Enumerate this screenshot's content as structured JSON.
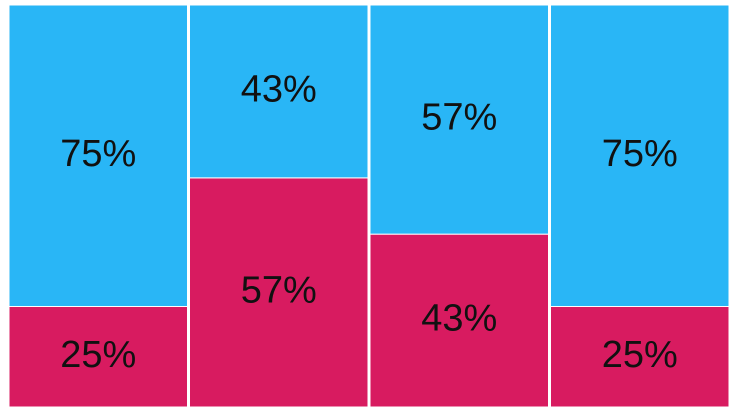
{
  "chart_data": {
    "type": "bar",
    "stacked": true,
    "ylim": [
      0,
      100
    ],
    "series": [
      {
        "color": "#d81b60",
        "values": [
          25,
          57,
          43,
          25
        ],
        "value_labels": [
          "25%",
          "57%",
          "43%",
          "25%"
        ]
      },
      {
        "color": "#29b6f6",
        "values": [
          75,
          43,
          57,
          75
        ],
        "value_labels": [
          "75%",
          "43%",
          "57%",
          "75%"
        ]
      }
    ]
  }
}
